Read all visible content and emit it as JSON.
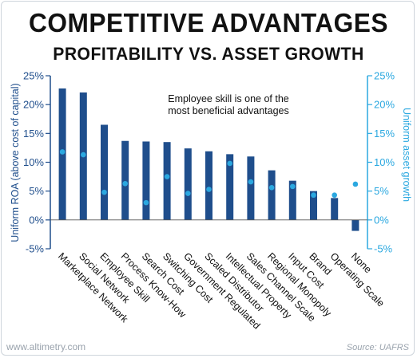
{
  "chart_data": {
    "type": "bar",
    "title": "COMPETITIVE ADVANTAGES",
    "subtitle": "PROFITABILITY VS. ASSET GROWTH",
    "categories": [
      "Marketplace Network",
      "Social Network",
      "Employee Skill",
      "Process Know-How",
      "Search Cost",
      "Switching Cost",
      "Government Regulated",
      "Scaled Distributor",
      "Intellectual Property",
      "Sales Channel Scale",
      "Regional Monopoly",
      "Input Cost",
      "Brand",
      "Operating Scale",
      "None"
    ],
    "series": [
      {
        "name": "Uniform ROA (above cost of capital)",
        "type": "bar",
        "axis": "left",
        "color": "#1f4e8c",
        "values": [
          22.8,
          22.1,
          16.5,
          13.7,
          13.6,
          13.5,
          12.4,
          11.9,
          11.4,
          11.0,
          8.6,
          6.8,
          5.0,
          3.8,
          -1.9
        ]
      },
      {
        "name": "Uniform asset growth",
        "type": "point",
        "axis": "right",
        "color": "#2ba8e0",
        "values": [
          11.8,
          11.3,
          4.8,
          6.3,
          3.0,
          7.5,
          4.6,
          5.3,
          9.8,
          6.6,
          5.6,
          5.8,
          4.3,
          4.3,
          6.2
        ]
      }
    ],
    "ylabel": "Uniform ROA (above cost of capital)",
    "y2label": "Uniform asset growth",
    "ylim": [
      -5,
      25
    ],
    "y2lim": [
      -5,
      25
    ],
    "yticks": [
      "-5%",
      "0%",
      "5%",
      "10%",
      "15%",
      "20%",
      "25%"
    ],
    "y2ticks": [
      "-5%",
      "0%",
      "5%",
      "10%",
      "15%",
      "20%",
      "25%"
    ],
    "ytick_values": [
      -5,
      0,
      5,
      10,
      15,
      20,
      25
    ],
    "annotation": "Employee skill is one of the most beneficial advantages",
    "annotation_lines": [
      "Employee skill is one of the",
      "most beneficial advantages"
    ],
    "grid": false,
    "left_axis_color": "#1f4e8c",
    "right_axis_color": "#2ba8e0"
  },
  "footer": {
    "website": "www.altimetry.com",
    "source": "Source: UAFRS"
  }
}
